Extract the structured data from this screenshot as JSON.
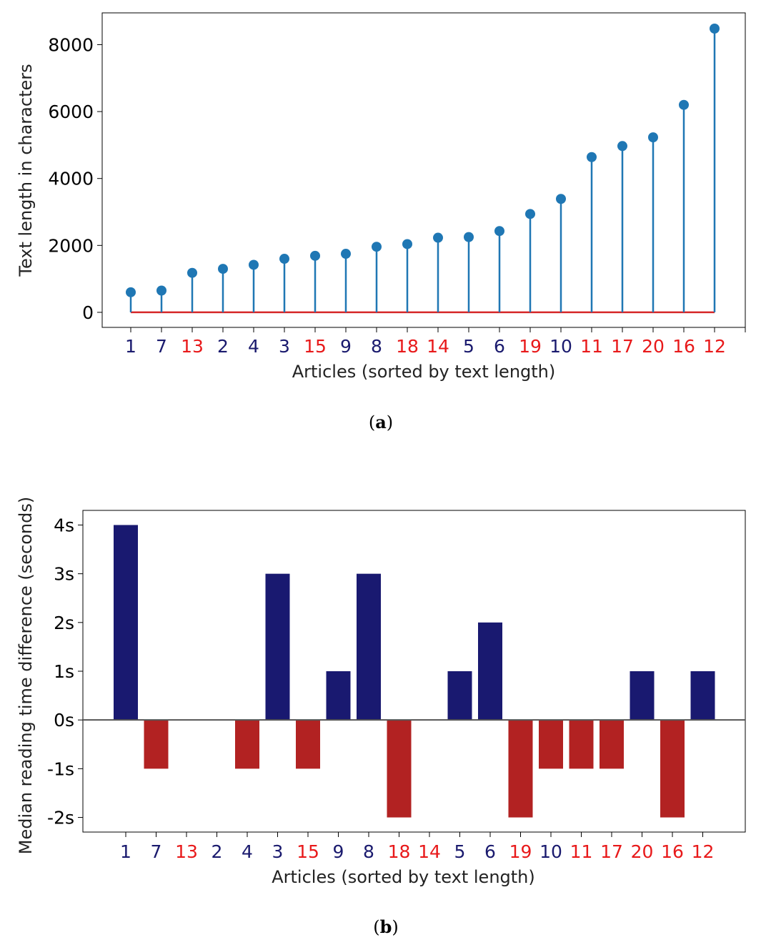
{
  "chart_data": [
    {
      "type": "stem",
      "caption_letter": "a",
      "categories": [
        "1",
        "7",
        "13",
        "2",
        "4",
        "3",
        "15",
        "9",
        "8",
        "18",
        "14",
        "5",
        "6",
        "19",
        "10",
        "11",
        "17",
        "20",
        "16",
        "12"
      ],
      "category_colors": [
        "#1a1a6e",
        "#1a1a6e",
        "#e8191a",
        "#1a1a6e",
        "#1a1a6e",
        "#1a1a6e",
        "#e8191a",
        "#1a1a6e",
        "#1a1a6e",
        "#e8191a",
        "#e8191a",
        "#1a1a6e",
        "#1a1a6e",
        "#e8191a",
        "#1a1a6e",
        "#e8191a",
        "#e8191a",
        "#e8191a",
        "#e8191a",
        "#e8191a"
      ],
      "values": [
        600,
        650,
        1180,
        1300,
        1420,
        1600,
        1690,
        1750,
        1960,
        2040,
        2230,
        2250,
        2430,
        2940,
        3390,
        4640,
        4970,
        5230,
        6200,
        8480
      ],
      "yticks": [
        0,
        2000,
        4000,
        6000,
        8000
      ],
      "ytick_labels": [
        "0",
        "2000",
        "4000",
        "6000",
        "8000"
      ],
      "ylim": [
        -450,
        8950
      ],
      "xlabel": "Articles (sorted by text length)",
      "ylabel": "Text length in characters",
      "stem_color": "#1f77b4",
      "baseline_color": "#d62728"
    },
    {
      "type": "bar",
      "caption_letter": "b",
      "categories": [
        "1",
        "7",
        "13",
        "2",
        "4",
        "3",
        "15",
        "9",
        "8",
        "18",
        "14",
        "5",
        "6",
        "19",
        "10",
        "11",
        "17",
        "20",
        "16",
        "12"
      ],
      "category_colors": [
        "#1a1a6e",
        "#1a1a6e",
        "#e8191a",
        "#1a1a6e",
        "#1a1a6e",
        "#1a1a6e",
        "#e8191a",
        "#1a1a6e",
        "#1a1a6e",
        "#e8191a",
        "#e8191a",
        "#1a1a6e",
        "#1a1a6e",
        "#e8191a",
        "#1a1a6e",
        "#e8191a",
        "#e8191a",
        "#e8191a",
        "#e8191a",
        "#e8191a"
      ],
      "values": [
        4,
        -1,
        0,
        0,
        -1,
        3,
        -1,
        1,
        3,
        -2,
        0,
        1,
        2,
        -2,
        -1,
        -1,
        -1,
        1,
        -2,
        1
      ],
      "yticks": [
        -2,
        -1,
        0,
        1,
        2,
        3,
        4
      ],
      "ytick_labels": [
        "-2s",
        "-1s",
        "0s",
        "1s",
        "2s",
        "3s",
        "4s"
      ],
      "ylim": [
        -2.3,
        4.3
      ],
      "xlabel": "Articles (sorted by text length)",
      "ylabel": "Median reading time difference (seconds)",
      "positive_color": "#191970",
      "negative_color": "#b22222",
      "zero_line_color": "#555555"
    }
  ]
}
